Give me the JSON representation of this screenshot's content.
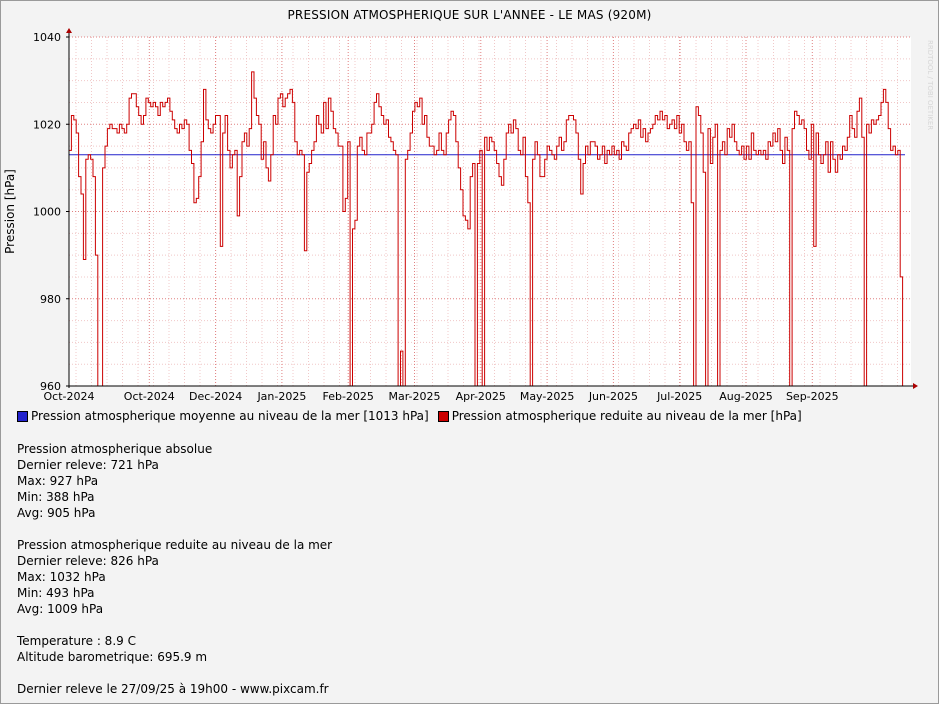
{
  "chart_data": {
    "type": "line",
    "title": "PRESSION ATMOSPHERIQUE SUR L'ANNEE - LE MAS (920M)",
    "ylabel": "Pression [hPa]",
    "ylim": [
      960,
      1040
    ],
    "yticks": [
      960,
      980,
      1000,
      1020,
      1040
    ],
    "xticks": [
      "Oct-2024",
      "Oct-2024",
      "Dec-2024",
      "Jan-2025",
      "Feb-2025",
      "Mar-2025",
      "Apr-2025",
      "May-2025",
      "Jun-2025",
      "Jul-2025",
      "Aug-2025",
      "Sep-2025"
    ],
    "grid": true,
    "legend_position": "bottom",
    "series": [
      {
        "name": "Pression atmospherique moyenne au niveau de la mer [1013 hPa]",
        "color": "#2222cc",
        "values": [
          1013,
          1013
        ]
      },
      {
        "name": "Pression atmospherique reduite au niveau de la mer [hPa]",
        "color": "#cc0000",
        "values": [
          1014,
          1022,
          1021,
          1018,
          1008,
          1004,
          989,
          1012,
          1013,
          1012,
          1008,
          990,
          960,
          960,
          1010,
          1015,
          1019,
          1020,
          1019,
          1019,
          1018,
          1020,
          1019,
          1018,
          1020,
          1026,
          1027,
          1027,
          1024,
          1022,
          1020,
          1022,
          1026,
          1025,
          1024,
          1025,
          1024,
          1022,
          1025,
          1024,
          1025,
          1026,
          1023,
          1021,
          1019,
          1018,
          1020,
          1019,
          1021,
          1020,
          1014,
          1011,
          1002,
          1003,
          1008,
          1016,
          1028,
          1021,
          1019,
          1018,
          1020,
          1022,
          1022,
          992,
          1018,
          1022,
          1014,
          1010,
          1013,
          1014,
          999,
          1008,
          1016,
          1018,
          1015,
          1019,
          1032,
          1026,
          1022,
          1020,
          1012,
          1016,
          1010,
          1007,
          1013,
          1022,
          1020,
          1026,
          1027,
          1024,
          1026,
          1027,
          1028,
          1025,
          1016,
          1013,
          1014,
          1013,
          991,
          1009,
          1011,
          1014,
          1016,
          1022,
          1020,
          1018,
          1025,
          1019,
          1026,
          1023,
          1019,
          1018,
          1015,
          1015,
          1000,
          1003,
          1016,
          960,
          996,
          998,
          1015,
          1017,
          1014,
          1013,
          1018,
          1018,
          1020,
          1025,
          1027,
          1024,
          1022,
          1020,
          1021,
          1017,
          1016,
          1014,
          1013,
          960,
          968,
          960,
          1012,
          1014,
          1018,
          1023,
          1025,
          1024,
          1026,
          1020,
          1022,
          1017,
          1015,
          1015,
          1013,
          1014,
          1018,
          1014,
          1013,
          1018,
          1021,
          1023,
          1022,
          1016,
          1010,
          1005,
          999,
          998,
          996,
          1008,
          1011,
          960,
          1011,
          1014,
          960,
          1017,
          1014,
          1017,
          1016,
          1014,
          1011,
          1008,
          1006,
          1012,
          1018,
          1020,
          1018,
          1021,
          1019,
          1014,
          1013,
          1017,
          1008,
          1002,
          960,
          1012,
          1016,
          1013,
          1008,
          1008,
          1012,
          1015,
          1014,
          1013,
          1012,
          1015,
          1017,
          1014,
          1016,
          1021,
          1022,
          1022,
          1021,
          1018,
          1012,
          1004,
          1011,
          1015,
          1013,
          1016,
          1016,
          1015,
          1012,
          1013,
          1015,
          1011,
          1014,
          1013,
          1015,
          1013,
          1014,
          1012,
          1016,
          1015,
          1014,
          1018,
          1019,
          1020,
          1019,
          1021,
          1017,
          1019,
          1016,
          1018,
          1019,
          1020,
          1022,
          1021,
          1023,
          1021,
          1022,
          1019,
          1020,
          1021,
          1019,
          1022,
          1018,
          1020,
          1016,
          1014,
          1016,
          1002,
          960,
          1024,
          1022,
          1018,
          1009,
          960,
          1019,
          1011,
          1017,
          1020,
          960,
          1014,
          1016,
          1013,
          1019,
          1017,
          1020,
          1016,
          1014,
          1013,
          1015,
          1012,
          1015,
          1012,
          1018,
          1014,
          1013,
          1014,
          1013,
          1014,
          1012,
          1016,
          1015,
          1018,
          1016,
          1019,
          1014,
          1011,
          1017,
          1014,
          960,
          1019,
          1023,
          1022,
          1020,
          1021,
          1019,
          1014,
          1012,
          1020,
          992,
          1018,
          1013,
          1011,
          1013,
          1016,
          1009,
          1016,
          1012,
          1009,
          1013,
          1012,
          1015,
          1014,
          1017,
          1022,
          1019,
          1017,
          1023,
          1026,
          1017,
          960,
          1020,
          1018,
          1021,
          1020,
          1021,
          1022,
          1025,
          1028,
          1025,
          1019,
          1014,
          1015,
          1013,
          1014,
          985,
          960
        ]
      }
    ]
  },
  "legend": {
    "item1": "Pression atmospherique moyenne au niveau de la mer [1013 hPa]",
    "item2": "Pression atmospherique reduite au niveau de la mer [hPa]"
  },
  "stats": {
    "abs_title": "Pression atmospherique absolue",
    "abs_last": "Dernier releve: 721 hPa",
    "abs_max": "Max: 927 hPa",
    "abs_min": "Min: 388 hPa",
    "abs_avg": "Avg: 905 hPa",
    "red_title": "Pression atmospherique reduite au niveau de la mer",
    "red_last": "Dernier releve: 826 hPa",
    "red_max": "Max: 1032 hPa",
    "red_min": "Min: 493 hPa",
    "red_avg": "Avg: 1009 hPa",
    "temperature": "Temperature : 8.9 C",
    "altitude": "Altitude barometrique: 695.9 m",
    "footer": "Dernier releve le 27/09/25 à 19h00 - www.pixcam.fr"
  },
  "watermark": "RRDTOOL / TOBI OETIKER"
}
